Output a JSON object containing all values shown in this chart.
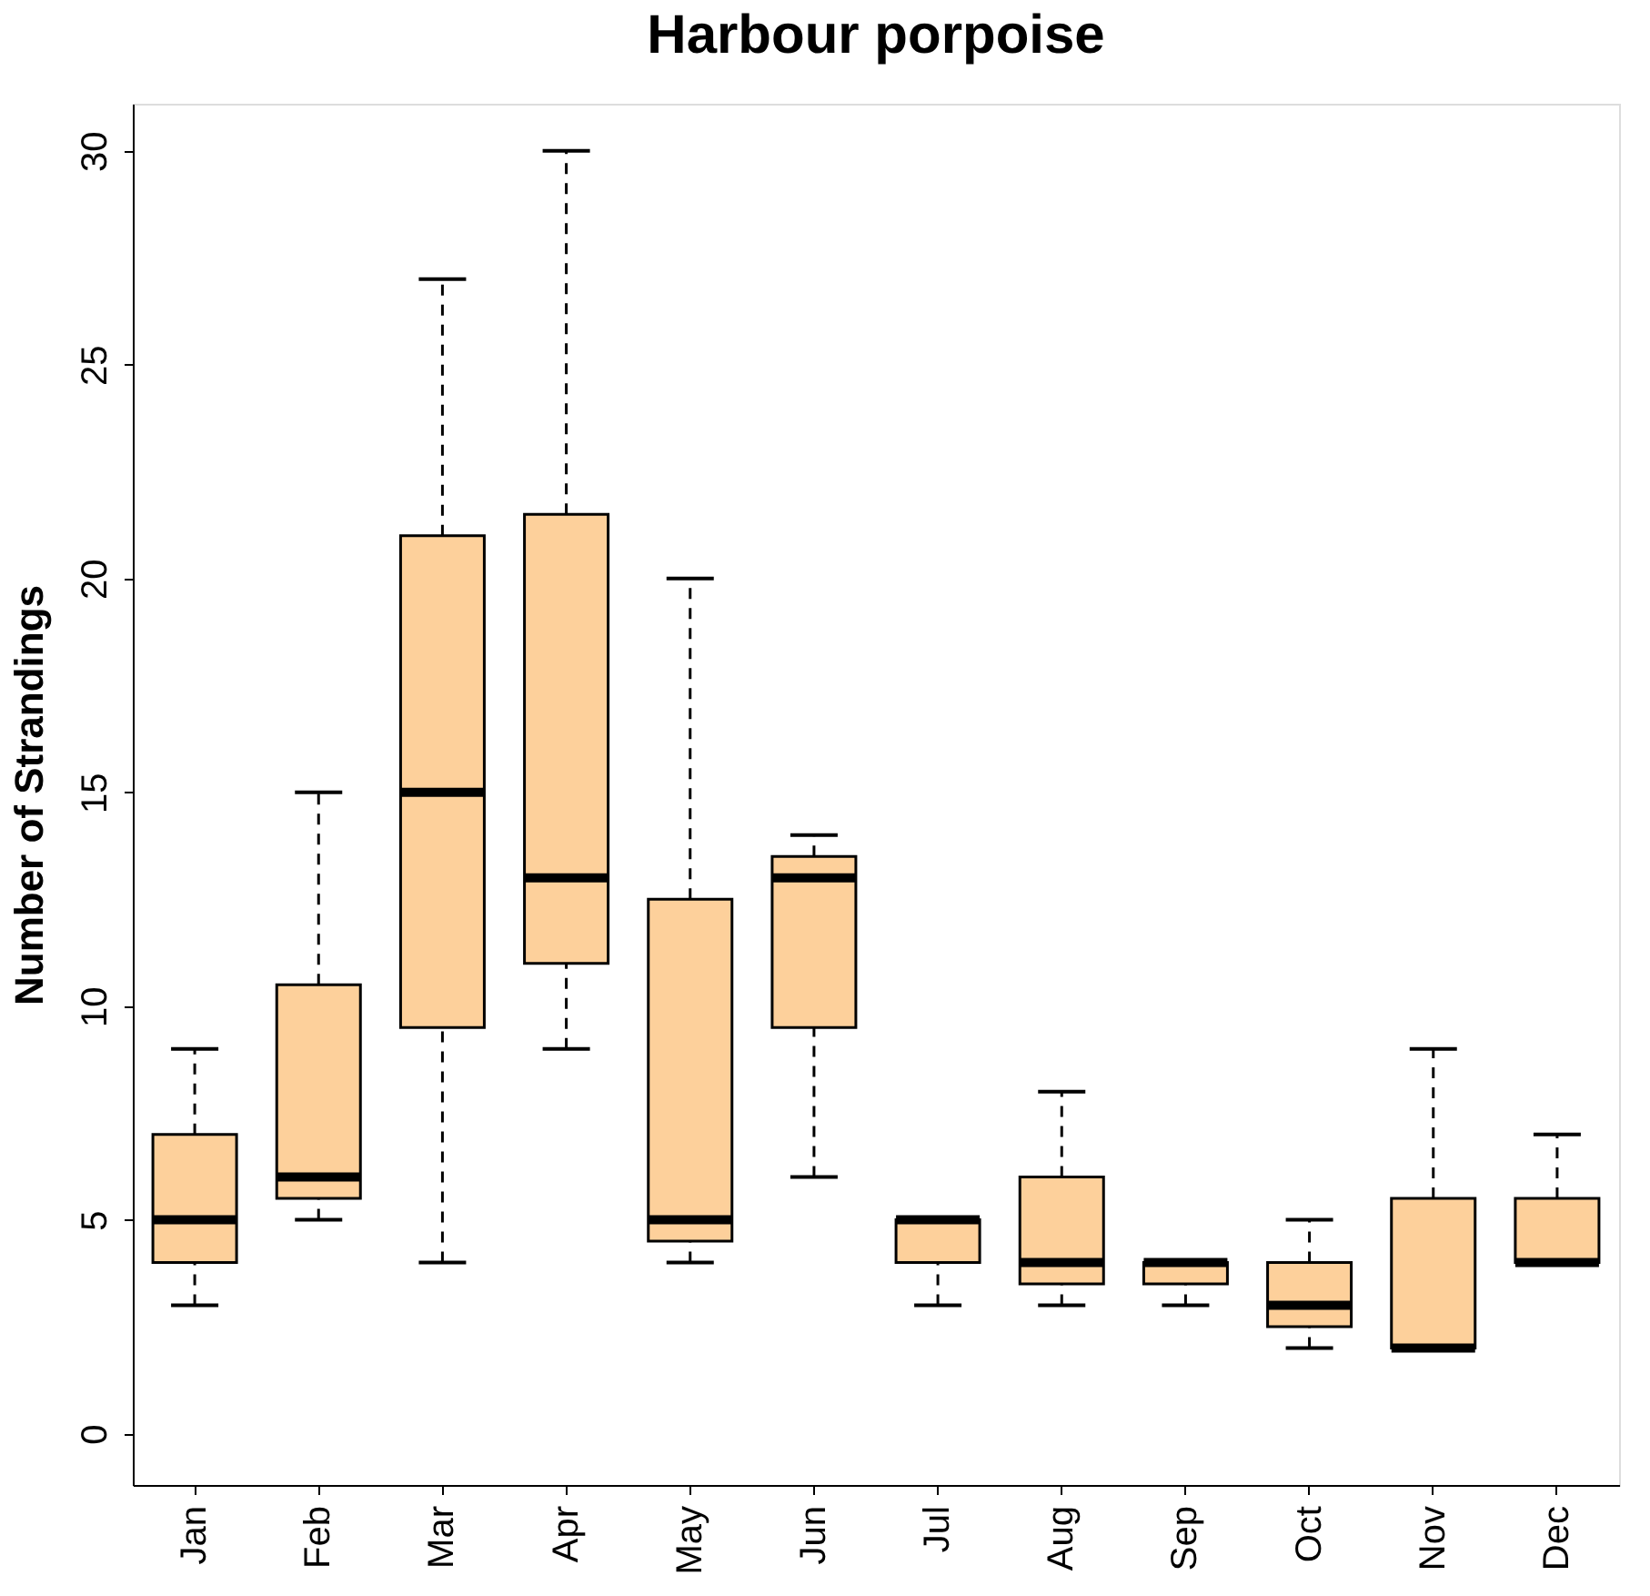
{
  "chart_data": {
    "type": "box",
    "title": "Harbour porpoise",
    "ylabel": "Number of Strandings",
    "color": "#fdd09b",
    "categories": [
      "Jan",
      "Feb",
      "Mar",
      "Apr",
      "May",
      "Jun",
      "Jul",
      "Aug",
      "Sep",
      "Oct",
      "Nov",
      "Dec"
    ],
    "boxes": [
      {
        "low": 3,
        "q1": 4,
        "median": 5,
        "q3": 7,
        "high": 9
      },
      {
        "low": 5,
        "q1": 5.5,
        "median": 6,
        "q3": 10.5,
        "high": 15
      },
      {
        "low": 4,
        "q1": 9.5,
        "median": 15,
        "q3": 21,
        "high": 27
      },
      {
        "low": 9,
        "q1": 11,
        "median": 13,
        "q3": 21.5,
        "high": 30
      },
      {
        "low": 4,
        "q1": 4.5,
        "median": 5,
        "q3": 12.5,
        "high": 20
      },
      {
        "low": 6,
        "q1": 9.5,
        "median": 13,
        "q3": 13.5,
        "high": 14
      },
      {
        "low": 3,
        "q1": 4,
        "median": 5,
        "q3": 5,
        "high": 5
      },
      {
        "low": 3,
        "q1": 3.5,
        "median": 4,
        "q3": 6,
        "high": 8
      },
      {
        "low": 3,
        "q1": 3.5,
        "median": 4,
        "q3": 4,
        "high": 4
      },
      {
        "low": 2,
        "q1": 2.5,
        "median": 3,
        "q3": 4,
        "high": 5
      },
      {
        "low": 2,
        "q1": 2,
        "median": 2,
        "q3": 5.5,
        "high": 9
      },
      {
        "low": 4,
        "q1": 4,
        "median": 4,
        "q3": 5.5,
        "high": 7
      }
    ],
    "ylim": [
      -1.2,
      31.1
    ],
    "yticks": [
      0,
      5,
      10,
      15,
      20,
      25,
      30
    ],
    "grid": false
  }
}
